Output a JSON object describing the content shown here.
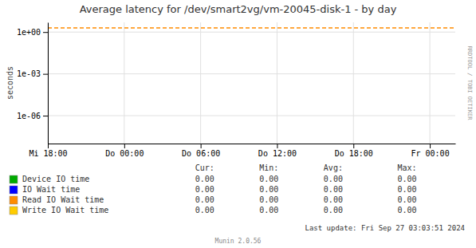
{
  "chart_data": {
    "type": "line",
    "title": "Average latency for /dev/smart2vg/vm-20045-disk-1 - by day",
    "ylabel": "seconds",
    "log": "y",
    "grid": true,
    "xlim": [
      0,
      32
    ],
    "xticks": [
      {
        "value": 0,
        "label": "Mi 18:00"
      },
      {
        "value": 6,
        "label": "Do 00:00"
      },
      {
        "value": 12,
        "label": "Do 06:00"
      },
      {
        "value": 18,
        "label": "Do 12:00"
      },
      {
        "value": 24,
        "label": "Do 18:00"
      },
      {
        "value": 30,
        "label": "Fr 00:00"
      }
    ],
    "ylim": [
      1e-08,
      5.0
    ],
    "yticks": [
      {
        "value": 1,
        "label": "1e+00"
      },
      {
        "value": 0.001,
        "label": "1e-03"
      },
      {
        "value": 1e-06,
        "label": "1e-06"
      }
    ],
    "hlines": [
      {
        "value": 2.0,
        "color": "#ff8c00",
        "line_style": "dashed"
      }
    ],
    "series": [
      {
        "name": "Device IO time",
        "color": "#00aa00"
      },
      {
        "name": "IO Wait time",
        "color": "#0000ff"
      },
      {
        "name": "Read IO Wait time",
        "color": "#ff8c00"
      },
      {
        "name": "Write IO Wait time",
        "color": "#ffcc00"
      }
    ],
    "table": {
      "columns": [
        "Cur:",
        "Min:",
        "Avg:",
        "Max:"
      ],
      "rows": [
        [
          "0.00",
          "0.00",
          "0.00",
          "0.00"
        ],
        [
          "0.00",
          "0.00",
          "0.00",
          "0.00"
        ],
        [
          "0.00",
          "0.00",
          "0.00",
          "0.00"
        ],
        [
          "0.00",
          "0.00",
          "0.00",
          "0.00"
        ]
      ]
    },
    "annotations": [
      "RRDTOOL / TOBI OETIKER",
      "Last update: Fri Sep 27 03:03:51 2024",
      "Munin 2.0.56"
    ]
  }
}
